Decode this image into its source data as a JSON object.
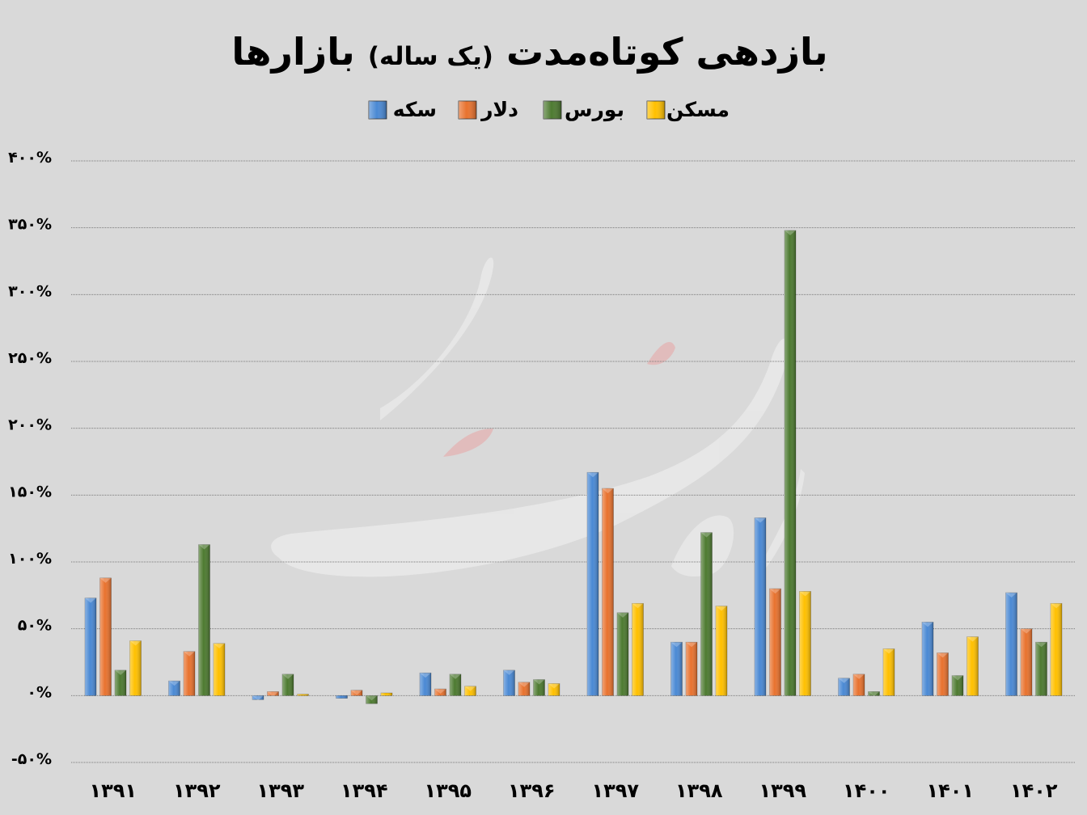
{
  "chart_data": {
    "type": "bar",
    "title": "بازدهی کوتاه‌مدت",
    "title_paren": "(یک ساله)",
    "title_end": "بازارها",
    "xlabel": "",
    "ylabel": "",
    "ylim": [
      -50,
      400
    ],
    "y_ticks": [
      {
        "value": 400,
        "label": "۴۰۰%"
      },
      {
        "value": 350,
        "label": "۳۵۰%"
      },
      {
        "value": 300,
        "label": "۳۰۰%"
      },
      {
        "value": 250,
        "label": "۲۵۰%"
      },
      {
        "value": 200,
        "label": "۲۰۰%"
      },
      {
        "value": 150,
        "label": "۱۵۰%"
      },
      {
        "value": 100,
        "label": "۱۰۰%"
      },
      {
        "value": 50,
        "label": "۵۰%"
      },
      {
        "value": 0,
        "label": "۰%"
      },
      {
        "value": -50,
        "label": "-۵۰%"
      }
    ],
    "grid": true,
    "legend_position": "top-center",
    "categories": [
      "۱۳۹۱",
      "۱۳۹۲",
      "۱۳۹۳",
      "۱۳۹۴",
      "۱۳۹۵",
      "۱۳۹۶",
      "۱۳۹۷",
      "۱۳۹۸",
      "۱۳۹۹",
      "۱۴۰۰",
      "۱۴۰۱",
      "۱۴۰۲"
    ],
    "series": [
      {
        "name": "سکه",
        "color": "#4a89d4",
        "values": [
          73,
          11,
          -3,
          -2,
          17,
          19,
          167,
          40,
          133,
          13,
          55,
          77
        ]
      },
      {
        "name": "دلار",
        "color": "#e8722e",
        "values": [
          88,
          33,
          3,
          4,
          5,
          10,
          155,
          40,
          80,
          16,
          32,
          50
        ]
      },
      {
        "name": "بورس",
        "color": "#4d7a30",
        "values": [
          19,
          113,
          16,
          -6,
          16,
          12,
          62,
          122,
          348,
          3,
          15,
          40
        ]
      },
      {
        "name": "مسکن",
        "color": "#ffc000",
        "values": [
          41,
          39,
          1,
          2,
          7,
          9,
          69,
          67,
          78,
          35,
          44,
          69
        ]
      }
    ]
  }
}
